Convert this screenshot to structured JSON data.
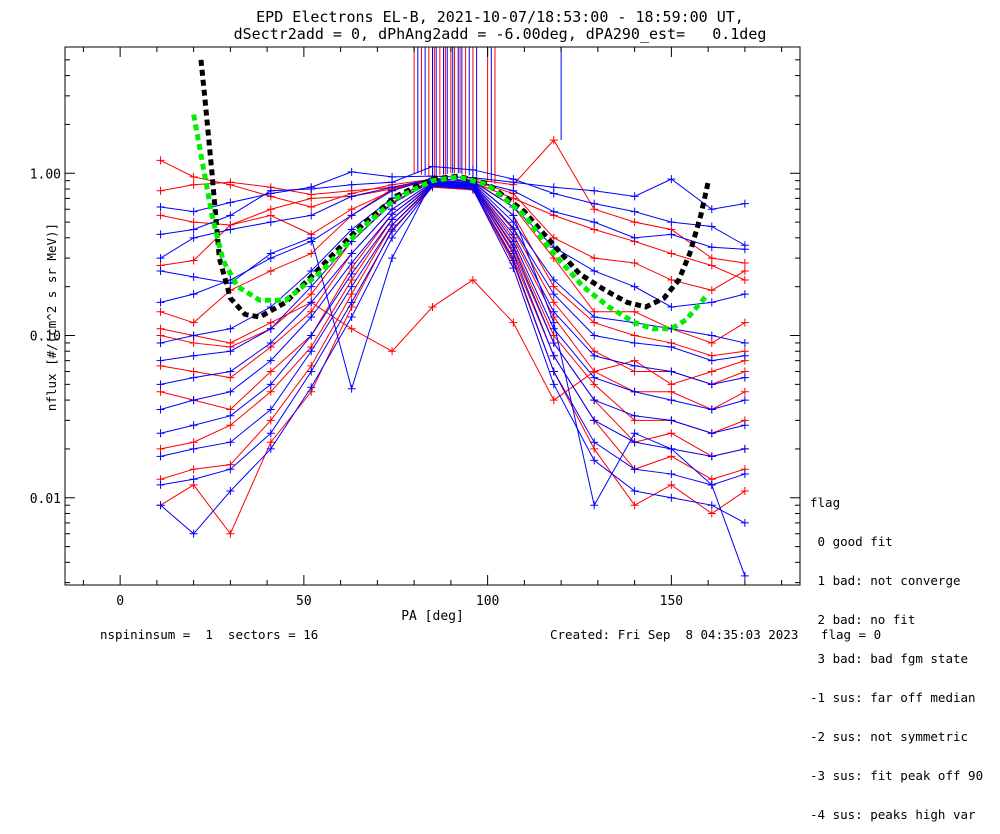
{
  "title_line1": "EPD Electrons EL-B, 2021-10-07/18:53:00 - 18:59:00 UT,",
  "title_line2": "dSectr2add = 0, dPhAng2add = -6.00deg, dPA290_est=   0.1deg",
  "legend": {
    "heading": "flag",
    "entries": [
      " 0 good fit",
      " 1 bad: not converge",
      " 2 bad: no fit",
      " 3 bad: bad fgm state",
      "-1 sus: far off median",
      "-2 sus: not symmetric",
      "-3 sus: fit peak off 90",
      "-4 sus: peaks high var"
    ]
  },
  "footer": {
    "left": "nspininsum =  1  sectors = 16",
    "right": "Created: Fri Sep  8 04:35:03 2023   flag = 0"
  },
  "colors": {
    "red": "#ff0000",
    "blue": "#0000ff",
    "black": "#000000",
    "green": "#00ee00"
  },
  "chart_data": {
    "type": "line",
    "xlabel": "PA [deg]",
    "ylabel": "nflux [#/(cm^2 s sr MeV)]",
    "xlim": [
      -15,
      185
    ],
    "ylim": [
      0.0029,
      6.0
    ],
    "yscale": "log",
    "xticks": [
      0,
      50,
      100,
      150
    ],
    "yticks": [
      {
        "value": 0.01,
        "label": "0.01"
      },
      {
        "value": 0.1,
        "label": "0.10"
      },
      {
        "value": 1.0,
        "label": "1.00"
      }
    ],
    "pa_bins": [
      11,
      20,
      30,
      41,
      52,
      63,
      74,
      85,
      96,
      107,
      118,
      129,
      140,
      150,
      161,
      170
    ],
    "series": [
      {
        "color": "red",
        "values": [
          0.78,
          0.85,
          0.88,
          0.82,
          0.74,
          0.78,
          0.82,
          0.88,
          0.88,
          0.7,
          0.55,
          0.45,
          0.38,
          0.32,
          0.27,
          0.22
        ]
      },
      {
        "color": "red",
        "values": [
          1.2,
          0.95,
          0.85,
          0.72,
          0.62,
          0.75,
          0.85,
          0.92,
          0.9,
          0.75,
          0.4,
          0.3,
          0.28,
          0.22,
          0.19,
          0.25
        ]
      },
      {
        "color": "red",
        "values": [
          0.27,
          0.29,
          0.48,
          0.55,
          0.42,
          0.6,
          0.78,
          0.93,
          0.9,
          0.62,
          0.3,
          0.14,
          0.14,
          0.11,
          0.09,
          0.12
        ]
      },
      {
        "color": "red",
        "values": [
          0.14,
          0.12,
          0.19,
          0.25,
          0.32,
          0.55,
          0.8,
          0.93,
          0.89,
          0.55,
          0.2,
          0.12,
          0.1,
          0.09,
          0.075,
          0.08
        ]
      },
      {
        "color": "red",
        "values": [
          0.1,
          0.09,
          0.085,
          0.11,
          0.18,
          0.38,
          0.66,
          0.9,
          0.86,
          0.45,
          0.16,
          0.08,
          0.06,
          0.06,
          0.05,
          0.06
        ]
      },
      {
        "color": "red",
        "values": [
          0.065,
          0.06,
          0.055,
          0.085,
          0.14,
          0.32,
          0.6,
          0.88,
          0.84,
          0.4,
          0.13,
          0.06,
          0.045,
          0.045,
          0.035,
          0.045
        ]
      },
      {
        "color": "red",
        "values": [
          0.045,
          0.04,
          0.035,
          0.06,
          0.1,
          0.26,
          0.56,
          0.86,
          0.83,
          0.36,
          0.1,
          0.05,
          0.03,
          0.03,
          0.025,
          0.03
        ]
      },
      {
        "color": "red",
        "values": [
          0.02,
          0.022,
          0.028,
          0.045,
          0.085,
          0.22,
          0.52,
          0.85,
          0.82,
          0.33,
          0.09,
          0.04,
          0.022,
          0.025,
          0.018,
          0.02
        ]
      },
      {
        "color": "red",
        "values": [
          0.013,
          0.015,
          0.016,
          0.03,
          0.065,
          0.18,
          0.48,
          0.83,
          0.8,
          0.3,
          0.075,
          0.03,
          0.015,
          0.018,
          0.013,
          0.015
        ]
      },
      {
        "color": "red",
        "values": [
          0.009,
          0.012,
          0.006,
          0.022,
          0.045,
          0.15,
          0.45,
          0.82,
          0.79,
          0.28,
          0.06,
          0.02,
          0.009,
          0.012,
          0.008,
          0.011
        ]
      },
      {
        "color": "red",
        "values": [
          0.11,
          0.1,
          0.09,
          0.12,
          0.16,
          0.11,
          0.08,
          0.15,
          0.22,
          0.12,
          0.04,
          0.06,
          0.07,
          0.05,
          0.06,
          0.07
        ]
      },
      {
        "color": "red",
        "values": [
          0.55,
          0.5,
          0.48,
          0.6,
          0.7,
          0.72,
          0.8,
          0.9,
          0.92,
          0.85,
          1.6,
          0.6,
          0.5,
          0.45,
          0.3,
          0.28
        ]
      },
      {
        "color": "blue",
        "values": [
          0.62,
          0.58,
          0.66,
          0.75,
          0.82,
          1.02,
          0.95,
          0.96,
          0.94,
          0.88,
          0.82,
          0.78,
          0.72,
          0.92,
          0.6,
          0.65
        ]
      },
      {
        "color": "blue",
        "values": [
          0.3,
          0.4,
          0.45,
          0.5,
          0.55,
          0.72,
          0.82,
          0.92,
          0.9,
          0.78,
          0.58,
          0.5,
          0.4,
          0.42,
          0.35,
          0.34
        ]
      },
      {
        "color": "blue",
        "values": [
          0.16,
          0.18,
          0.22,
          0.3,
          0.38,
          0.55,
          0.78,
          0.93,
          0.89,
          0.62,
          0.35,
          0.25,
          0.2,
          0.15,
          0.16,
          0.18
        ]
      },
      {
        "color": "blue",
        "values": [
          0.09,
          0.1,
          0.11,
          0.15,
          0.25,
          0.45,
          0.7,
          0.9,
          0.87,
          0.5,
          0.22,
          0.13,
          0.12,
          0.11,
          0.1,
          0.09
        ]
      },
      {
        "color": "blue",
        "values": [
          0.07,
          0.075,
          0.08,
          0.11,
          0.2,
          0.38,
          0.65,
          0.89,
          0.86,
          0.46,
          0.18,
          0.1,
          0.09,
          0.085,
          0.07,
          0.075
        ]
      },
      {
        "color": "blue",
        "values": [
          0.05,
          0.055,
          0.06,
          0.09,
          0.16,
          0.32,
          0.6,
          0.88,
          0.85,
          0.42,
          0.14,
          0.075,
          0.065,
          0.06,
          0.05,
          0.055
        ]
      },
      {
        "color": "blue",
        "values": [
          0.035,
          0.04,
          0.045,
          0.07,
          0.13,
          0.28,
          0.56,
          0.87,
          0.84,
          0.38,
          0.11,
          0.055,
          0.045,
          0.04,
          0.035,
          0.04
        ]
      },
      {
        "color": "blue",
        "values": [
          0.025,
          0.028,
          0.032,
          0.05,
          0.1,
          0.24,
          0.52,
          0.86,
          0.83,
          0.35,
          0.09,
          0.04,
          0.032,
          0.03,
          0.025,
          0.028
        ]
      },
      {
        "color": "blue",
        "values": [
          0.018,
          0.02,
          0.022,
          0.035,
          0.08,
          0.2,
          0.48,
          0.85,
          0.82,
          0.32,
          0.075,
          0.03,
          0.022,
          0.02,
          0.018,
          0.02
        ]
      },
      {
        "color": "blue",
        "values": [
          0.012,
          0.013,
          0.015,
          0.025,
          0.06,
          0.16,
          0.44,
          0.84,
          0.81,
          0.29,
          0.06,
          0.022,
          0.015,
          0.014,
          0.012,
          0.014
        ]
      },
      {
        "color": "blue",
        "values": [
          0.009,
          0.006,
          0.011,
          0.02,
          0.048,
          0.13,
          0.4,
          0.83,
          0.8,
          0.26,
          0.05,
          0.017,
          0.011,
          0.01,
          0.009,
          0.007
        ]
      },
      {
        "color": "blue",
        "values": [
          0.25,
          0.23,
          0.21,
          0.32,
          0.4,
          0.047,
          0.3,
          0.9,
          0.88,
          0.55,
          0.12,
          0.009,
          0.025,
          0.02,
          0.012,
          0.0033
        ]
      },
      {
        "color": "blue",
        "values": [
          0.42,
          0.45,
          0.55,
          0.78,
          0.8,
          0.85,
          0.88,
          1.1,
          1.05,
          0.92,
          0.75,
          0.65,
          0.58,
          0.5,
          0.47,
          0.36
        ]
      }
    ],
    "fit_curves": [
      {
        "color": "black",
        "x": [
          22,
          23,
          25,
          27,
          30,
          34,
          38,
          45,
          55,
          65,
          75,
          85,
          92,
          100,
          110,
          118,
          125,
          132,
          138,
          143,
          148,
          152,
          155,
          158,
          160
        ],
        "y": [
          5.0,
          3.0,
          1.0,
          0.3,
          0.17,
          0.135,
          0.13,
          0.16,
          0.27,
          0.46,
          0.72,
          0.92,
          0.96,
          0.86,
          0.58,
          0.36,
          0.24,
          0.19,
          0.16,
          0.15,
          0.17,
          0.22,
          0.32,
          0.55,
          0.88
        ]
      },
      {
        "color": "green",
        "x": [
          20,
          22,
          25,
          28,
          32,
          38,
          45,
          55,
          65,
          75,
          85,
          92,
          100,
          110,
          118,
          126,
          133,
          140,
          145,
          150,
          154,
          158,
          160
        ],
        "y": [
          2.3,
          1.3,
          0.55,
          0.29,
          0.2,
          0.165,
          0.165,
          0.25,
          0.44,
          0.7,
          0.9,
          0.95,
          0.85,
          0.55,
          0.32,
          0.2,
          0.15,
          0.12,
          0.11,
          0.11,
          0.125,
          0.16,
          0.18
        ]
      }
    ],
    "spikes": {
      "color_mix": [
        "red",
        "blue"
      ],
      "x": [
        80,
        81,
        82,
        83,
        84,
        85,
        85.5,
        86,
        87,
        88,
        88.5,
        89,
        90,
        90.5,
        91,
        92,
        92.5,
        93,
        94,
        95,
        96,
        97,
        100,
        101,
        102,
        120
      ],
      "y_base": [
        1.0,
        1.0,
        0.98,
        0.97,
        0.96,
        0.95,
        0.95,
        0.96,
        0.97,
        0.98,
        0.98,
        0.99,
        1.0,
        1.0,
        1.0,
        1.0,
        1.0,
        0.99,
        0.98,
        0.97,
        0.96,
        0.95,
        0.9,
        0.88,
        0.86,
        1.6
      ]
    }
  }
}
